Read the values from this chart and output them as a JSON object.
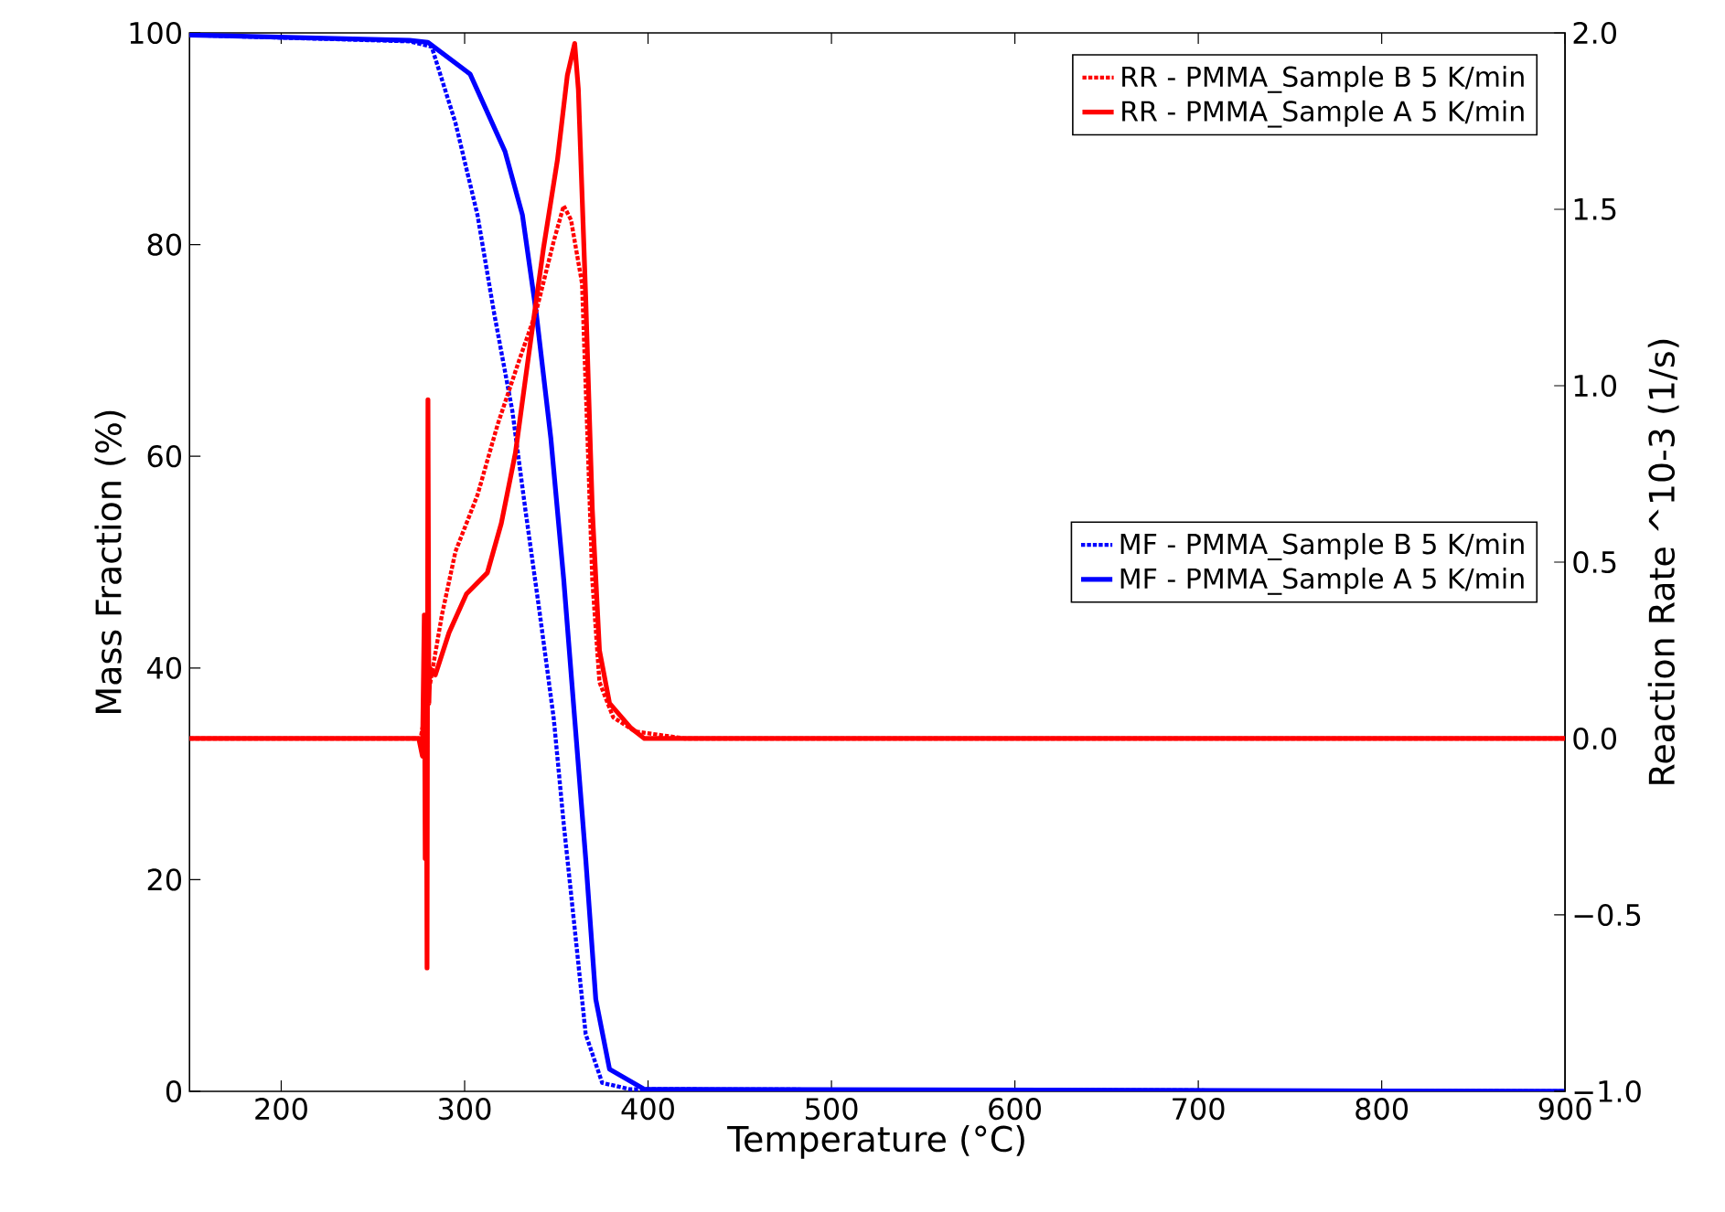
{
  "chart_data": {
    "type": "line",
    "xlabel": "Temperature (°C)",
    "ylabel": "Mass Fraction (%)",
    "y2label": "Reaction Rate ^10-3 (1/s)",
    "xlim": [
      150,
      900
    ],
    "xticks": [
      200,
      300,
      400,
      500,
      600,
      700,
      800,
      900
    ],
    "ylim": [
      0,
      100
    ],
    "yticks": [
      0,
      20,
      40,
      60,
      80,
      100
    ],
    "y2lim": [
      -1.0,
      2.0
    ],
    "y2ticks": [
      {
        "value": -1.0,
        "label": "−1.0"
      },
      {
        "value": -0.5,
        "label": "−0.5"
      },
      {
        "value": 0.0,
        "label": "0.0"
      },
      {
        "value": 0.5,
        "label": "0.5"
      },
      {
        "value": 1.0,
        "label": "1.0"
      },
      {
        "value": 1.5,
        "label": "1.5"
      },
      {
        "value": 2.0,
        "label": "2.0"
      }
    ],
    "legend": "top right",
    "grid": false,
    "marker": "none",
    "series": [
      {
        "name": "RR - PMMA_Sample B 5 K/min",
        "color": "#ff0000",
        "axis": "y2",
        "line_style": "dotted",
        "x": [
          150,
          276,
          281,
          287.6,
          295,
          307,
          318,
          329.6,
          339,
          348.6,
          354,
          358,
          364,
          367,
          369.6,
          373.5,
          381,
          393,
          420,
          900
        ],
        "values": [
          0.0,
          0.0,
          0.15,
          0.35,
          0.53,
          0.69,
          0.89,
          1.07,
          1.21,
          1.41,
          1.51,
          1.47,
          1.29,
          0.85,
          0.45,
          0.16,
          0.06,
          0.02,
          0.0,
          0.0
        ]
      },
      {
        "name": "RR - PMMA_Sample A 5 K/min",
        "color": "#ff0000",
        "axis": "y2",
        "line_style": "solid",
        "x": [
          150,
          275,
          277,
          278,
          278.5,
          279,
          279.5,
          280,
          280.5,
          281,
          284,
          291.5,
          301,
          312.4,
          320,
          327.7,
          335,
          343,
          350.6,
          356,
          360,
          362,
          366,
          369.6,
          373.5,
          379,
          390.6,
          398,
          900
        ],
        "values": [
          0.0,
          0.0,
          -0.05,
          0.35,
          -0.34,
          0.3,
          -0.65,
          0.96,
          0.1,
          0.2,
          0.18,
          0.3,
          0.41,
          0.47,
          0.61,
          0.81,
          1.09,
          1.39,
          1.64,
          1.88,
          1.97,
          1.84,
          1.25,
          0.65,
          0.25,
          0.1,
          0.03,
          0.0,
          0.0
        ]
      },
      {
        "name": "MF - PMMA_Sample B 5 K/min",
        "color": "#0000ff",
        "line_style": "dotted",
        "x": [
          150,
          270,
          282,
          295,
          307,
          316,
          326,
          333,
          341,
          348.6,
          354,
          360,
          366,
          375,
          390,
          900
        ],
        "values": [
          99.8,
          99.2,
          98.7,
          91.5,
          82.8,
          73.6,
          64.3,
          55.1,
          45.1,
          35.2,
          25.3,
          15.4,
          5.4,
          0.8,
          0.2,
          0.0
        ]
      },
      {
        "name": "MF - PMMA_Sample A 5 K/min",
        "color": "#0000ff",
        "line_style": "solid",
        "x": [
          150,
          270,
          280,
          303,
          322,
          331.5,
          339,
          347,
          354,
          360,
          366,
          371.5,
          379,
          398,
          900
        ],
        "values": [
          99.8,
          99.3,
          99.1,
          96.1,
          88.8,
          82.8,
          73.6,
          61.7,
          48.4,
          35.2,
          22.0,
          8.7,
          2.1,
          0.2,
          0.0
        ]
      }
    ]
  }
}
